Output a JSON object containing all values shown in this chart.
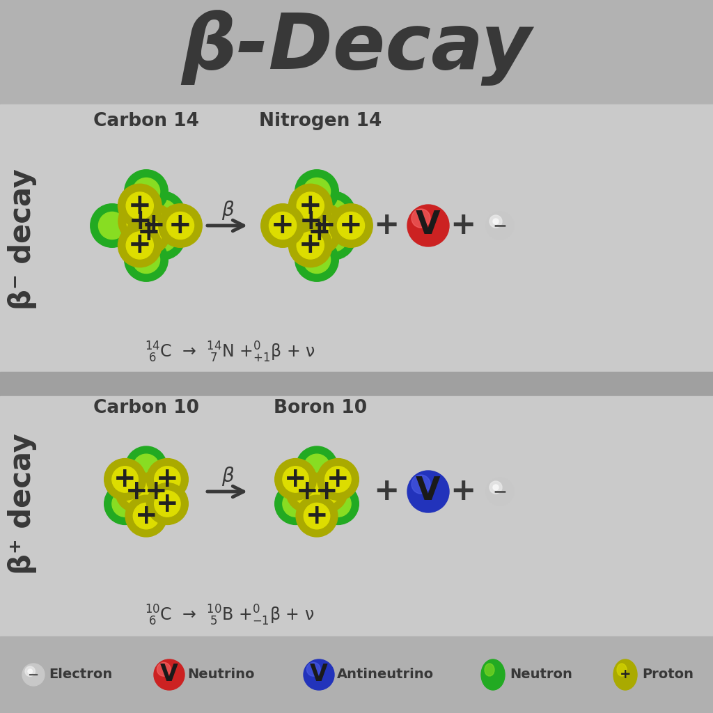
{
  "title": "β-Decay",
  "title_fontsize": 80,
  "bg_color_header": "#b2b2b2",
  "bg_color_panel": "#cacaca",
  "bg_color_divider": "#a0a0a0",
  "bg_color_footer": "#b0b0b0",
  "text_color": "#383838",
  "beta_minus_label": "β⁻ decay",
  "beta_plus_label": "β⁺ decay",
  "panel1_left_title": "Carbon 14",
  "panel1_right_title": "Nitrogen 14",
  "panel2_left_title": "Carbon 10",
  "panel2_right_title": "Boron 10",
  "legend_items": [
    "Electron",
    "Neutrino",
    "Antineutrino",
    "Neutron",
    "Proton"
  ],
  "neutron_color_outer": "#22aa22",
  "neutron_color_inner": "#88dd22",
  "proton_color_outer": "#aaaa00",
  "proton_color_inner": "#dddd00",
  "neutrino_color": "#cc2222",
  "antineutrino_color": "#2233bb",
  "electron_color": "#c0c0c0"
}
